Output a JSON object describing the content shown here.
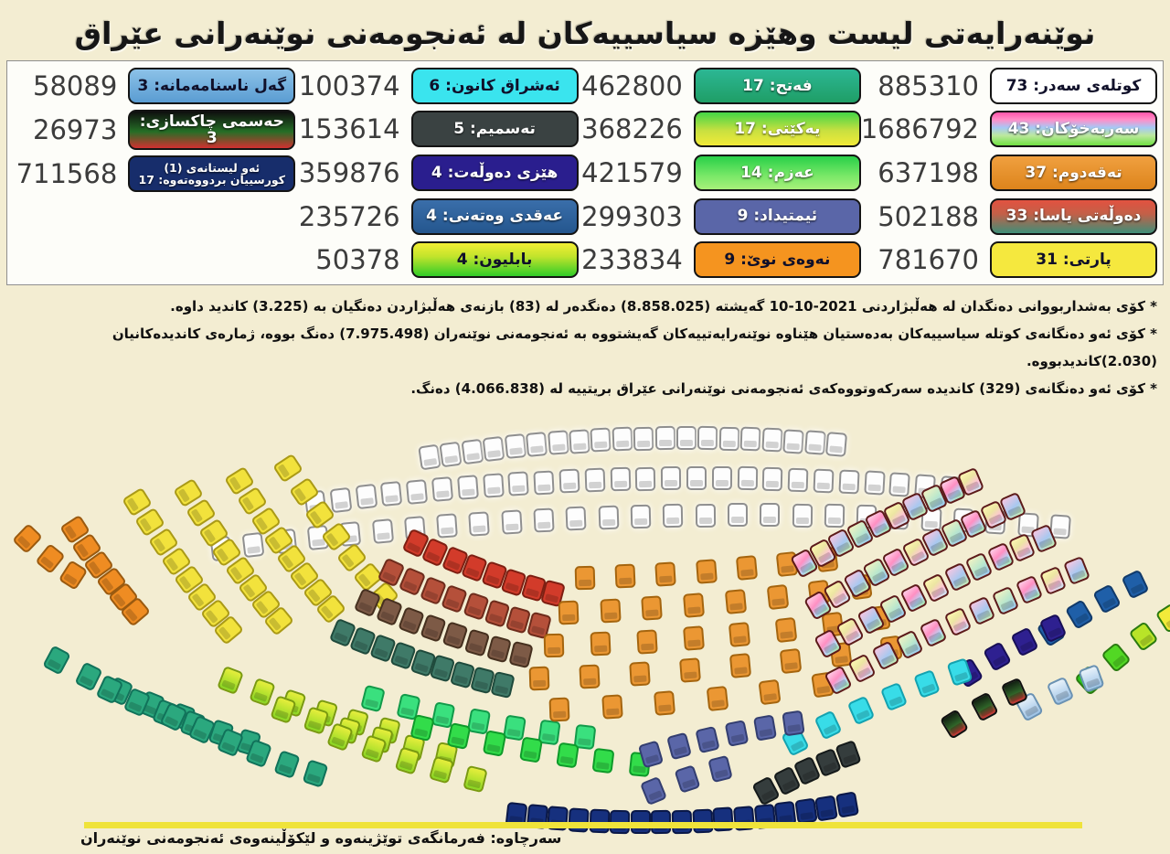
{
  "header": {
    "title": "نوێنەرایەتی لیست وهێزە سیاسییەکان لە ئەنجومەنی نوێنەرانی عێراق"
  },
  "footnotes": [
    "* کۆی بەشداربووانی دەنگدان لە هەڵبژاردنی 2021-10-10 گەیشتە (8.858.025) دەنگدەر لە (83) بازنەی هەڵبژاردن دەنگیان بە (3.225) کاندید داوە.",
    "* کۆی ئەو دەنگانەی کوتلە سیاسییەکان بەدەستیان هێناوە نوێنەرایەتییەکان گەیشتووە بە ئەنجومەنی نوێنەران (7.975.498) دەنگ بووە، ژمارەی کاندیدەکانیان (2.030)کاندیدبووە.",
    "* کۆی ئەو دەنگانەی (329) کاندیدە سەرکەوتووەکەی ئەنجومەنی نوێنەرانی عێراق بریتییە لە (4.066.838) دەنگ."
  ],
  "source": "سەرچاوە: فەرمانگەی توێژینەوە و لێکۆڵینەوەی ئەنجومەنی نوێنەران",
  "legend": {
    "columns": [
      [
        "sadr",
        "sarbakho",
        "taqadum",
        "dawlat",
        "party"
      ],
      [
        "fatah",
        "yakety",
        "azm",
        "imtidad",
        "naway"
      ],
      [
        "ishraq",
        "tasmim",
        "hizy",
        "aqdi",
        "babylon"
      ],
      [
        "gal",
        "hasm",
        "one"
      ]
    ],
    "dark_text_pills": [
      "sadr",
      "party",
      "naway",
      "ishraq",
      "babylon",
      "gal"
    ]
  },
  "chart_data": {
    "type": "parliament",
    "title": "نوێنەرایەتی لیست وهێزە سیاسییەکان لە ئەنجومەنی نوێنەرانی عێراق",
    "total_seats": 329,
    "total_voters": "8.858.025",
    "districts": 83,
    "candidates_total": "3.225",
    "winning_parties_votes": "7.975.498",
    "winning_parties_candidates": "2.030",
    "winning_candidates": 329,
    "winning_candidates_votes": "4.066.838",
    "parties": [
      {
        "id": "sadr",
        "name": "کوتلەی سەدر",
        "seats": 73,
        "votes": "885310",
        "colors": [
          "#ffffff"
        ]
      },
      {
        "id": "sarbakho",
        "name": "سەربەخۆکان",
        "seats": 43,
        "votes": "1686792",
        "colors": [
          "#ff55aa",
          "#a6c8f6",
          "#6fe042"
        ]
      },
      {
        "id": "taqadum",
        "name": "تەقەدوم",
        "seats": 37,
        "votes": "637198",
        "colors": [
          "#e8912d"
        ]
      },
      {
        "id": "dawlat",
        "name": "دەوڵەتی یاسا",
        "seats": 33,
        "votes": "502188",
        "colors": [
          "#e05038",
          "#7d5a46",
          "#3f8f78"
        ]
      },
      {
        "id": "party",
        "name": "پارتی",
        "seats": 31,
        "votes": "781670",
        "colors": [
          "#f5e83e"
        ]
      },
      {
        "id": "fatah",
        "name": "فەتح",
        "seats": 17,
        "votes": "462800",
        "colors": [
          "#2ab390",
          "#1fa06a"
        ]
      },
      {
        "id": "yakety",
        "name": "یەکێتی",
        "seats": 17,
        "votes": "368226",
        "colors": [
          "#48d848",
          "#f0e83a"
        ]
      },
      {
        "id": "azm",
        "name": "عەزم",
        "seats": 14,
        "votes": "421579",
        "colors": [
          "#30d048",
          "#a0f060"
        ]
      },
      {
        "id": "imtidad",
        "name": "ئیمتیداد",
        "seats": 9,
        "votes": "299303",
        "colors": [
          "#5a66a8"
        ]
      },
      {
        "id": "naway",
        "name": "نەوەی نوێ",
        "seats": 9,
        "votes": "233834",
        "colors": [
          "#f5941f"
        ]
      },
      {
        "id": "ishraq",
        "name": "ئەشراق کانون",
        "seats": 6,
        "votes": "100374",
        "colors": [
          "#3ae4ee"
        ]
      },
      {
        "id": "tasmim",
        "name": "تەسمیم",
        "seats": 5,
        "votes": "153614",
        "colors": [
          "#3a4242"
        ]
      },
      {
        "id": "hizy",
        "name": "هێزی دەوڵەت",
        "seats": 4,
        "votes": "359876",
        "colors": [
          "#2a1e8e"
        ]
      },
      {
        "id": "aqdi",
        "name": "عەقدی وەتەنی",
        "seats": 4,
        "votes": "235726",
        "colors": [
          "#2a5a9a"
        ]
      },
      {
        "id": "babylon",
        "name": "بابلیون",
        "seats": 4,
        "votes": "50378",
        "colors": [
          "#f0ef34",
          "#30cc28"
        ]
      },
      {
        "id": "gal",
        "name": "گەل ناسنامەمانە",
        "seats": 3,
        "votes": "58089",
        "colors": [
          "#6aacdc"
        ]
      },
      {
        "id": "hasm",
        "name": "حەسمی چاکسازی",
        "seats": 3,
        "votes": "26973",
        "colors": [
          "#101010",
          "#2a7a2a",
          "#e03030"
        ]
      },
      {
        "id": "one",
        "name": "ئەو لیستانەی (1) کورسییان بردووەتەوە",
        "seats": 17,
        "votes": "711568",
        "colors": [
          "#172d6b"
        ]
      }
    ]
  }
}
